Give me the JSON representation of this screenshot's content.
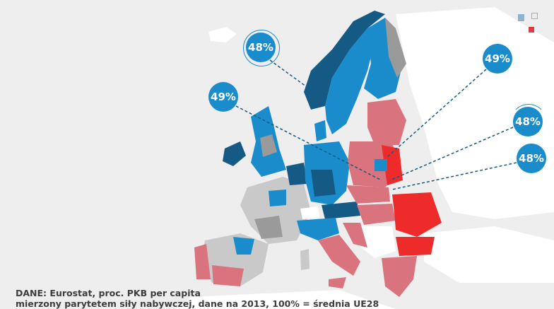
{
  "callouts": [
    {
      "label": "48%"
    },
    {
      "label": "49%"
    },
    {
      "label": "49%"
    },
    {
      "label": "48%"
    },
    {
      "label": "48%"
    }
  ],
  "source": {
    "line1": "DANE: Eurostat, proc. PKB per capita",
    "line2": "mierzony parytetem siły nabywczej, dane na 2013, 100% = średnia UE28"
  },
  "colors": {
    "high_dark": "#145a85",
    "high": "#1a8ccc",
    "average": "#9a9a9a",
    "light": "#c9c9c9",
    "low": "#d9737e",
    "lowest": "#ee2b2b",
    "non_eu": "#ffffff",
    "background": "#eeeeee"
  }
}
